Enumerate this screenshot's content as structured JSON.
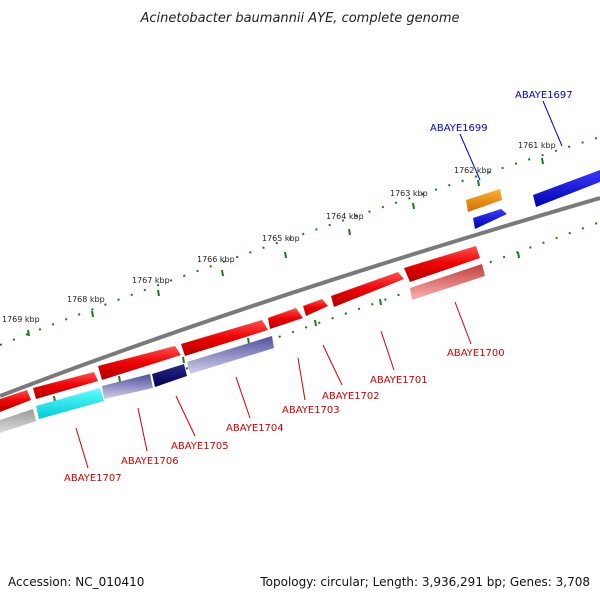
{
  "title": "Acinetobacter baumannii AYE, complete genome",
  "footer": {
    "accession": "Accession: NC_010410",
    "topology": "Topology: circular; Length: 3,936,291 bp; Genes: 3,708"
  },
  "colors": {
    "forward_gene": "#ff0000",
    "reverse_gene": "#0000ff",
    "label_forward": "#cc0000",
    "label_reverse": "#0000cc",
    "backbone": "#808080",
    "tick": "#1a7a1a"
  },
  "scale_labels": [
    "1761 kbp",
    "1762 kbp",
    "1763 kbp",
    "1764 kbp",
    "1765 kbp",
    "1766 kbp",
    "1767 kbp",
    "1768 kbp",
    "1769 kbp"
  ],
  "gene_labels": [
    {
      "id": "ABAYE1697",
      "strand": "top"
    },
    {
      "id": "ABAYE1699",
      "strand": "top"
    },
    {
      "id": "ABAYE1700",
      "strand": "bottom"
    },
    {
      "id": "ABAYE1701",
      "strand": "bottom"
    },
    {
      "id": "ABAYE1702",
      "strand": "bottom"
    },
    {
      "id": "ABAYE1703",
      "strand": "bottom"
    },
    {
      "id": "ABAYE1704",
      "strand": "bottom"
    },
    {
      "id": "ABAYE1705",
      "strand": "bottom"
    },
    {
      "id": "ABAYE1706",
      "strand": "bottom"
    },
    {
      "id": "ABAYE1707",
      "strand": "bottom"
    }
  ]
}
